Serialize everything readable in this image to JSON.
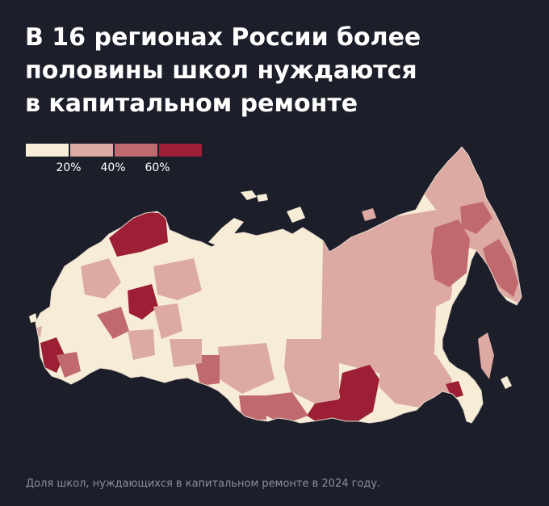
{
  "title": {
    "line1": "В 16 регионах России более",
    "line2": "половины школ нуждаются",
    "line3": "в капитальном ремонте"
  },
  "legend": {
    "ticks": [
      "20%",
      "40%",
      "60%"
    ],
    "colors": [
      "#f7edd6",
      "#dcaaa2",
      "#c06a70",
      "#9c1f35"
    ]
  },
  "map": {
    "background": "#1c1e2a",
    "border_color": "#e8d8cc"
  },
  "footnote": "Доля школ, нуждающихся в капитальном ремонте в 2024 году."
}
